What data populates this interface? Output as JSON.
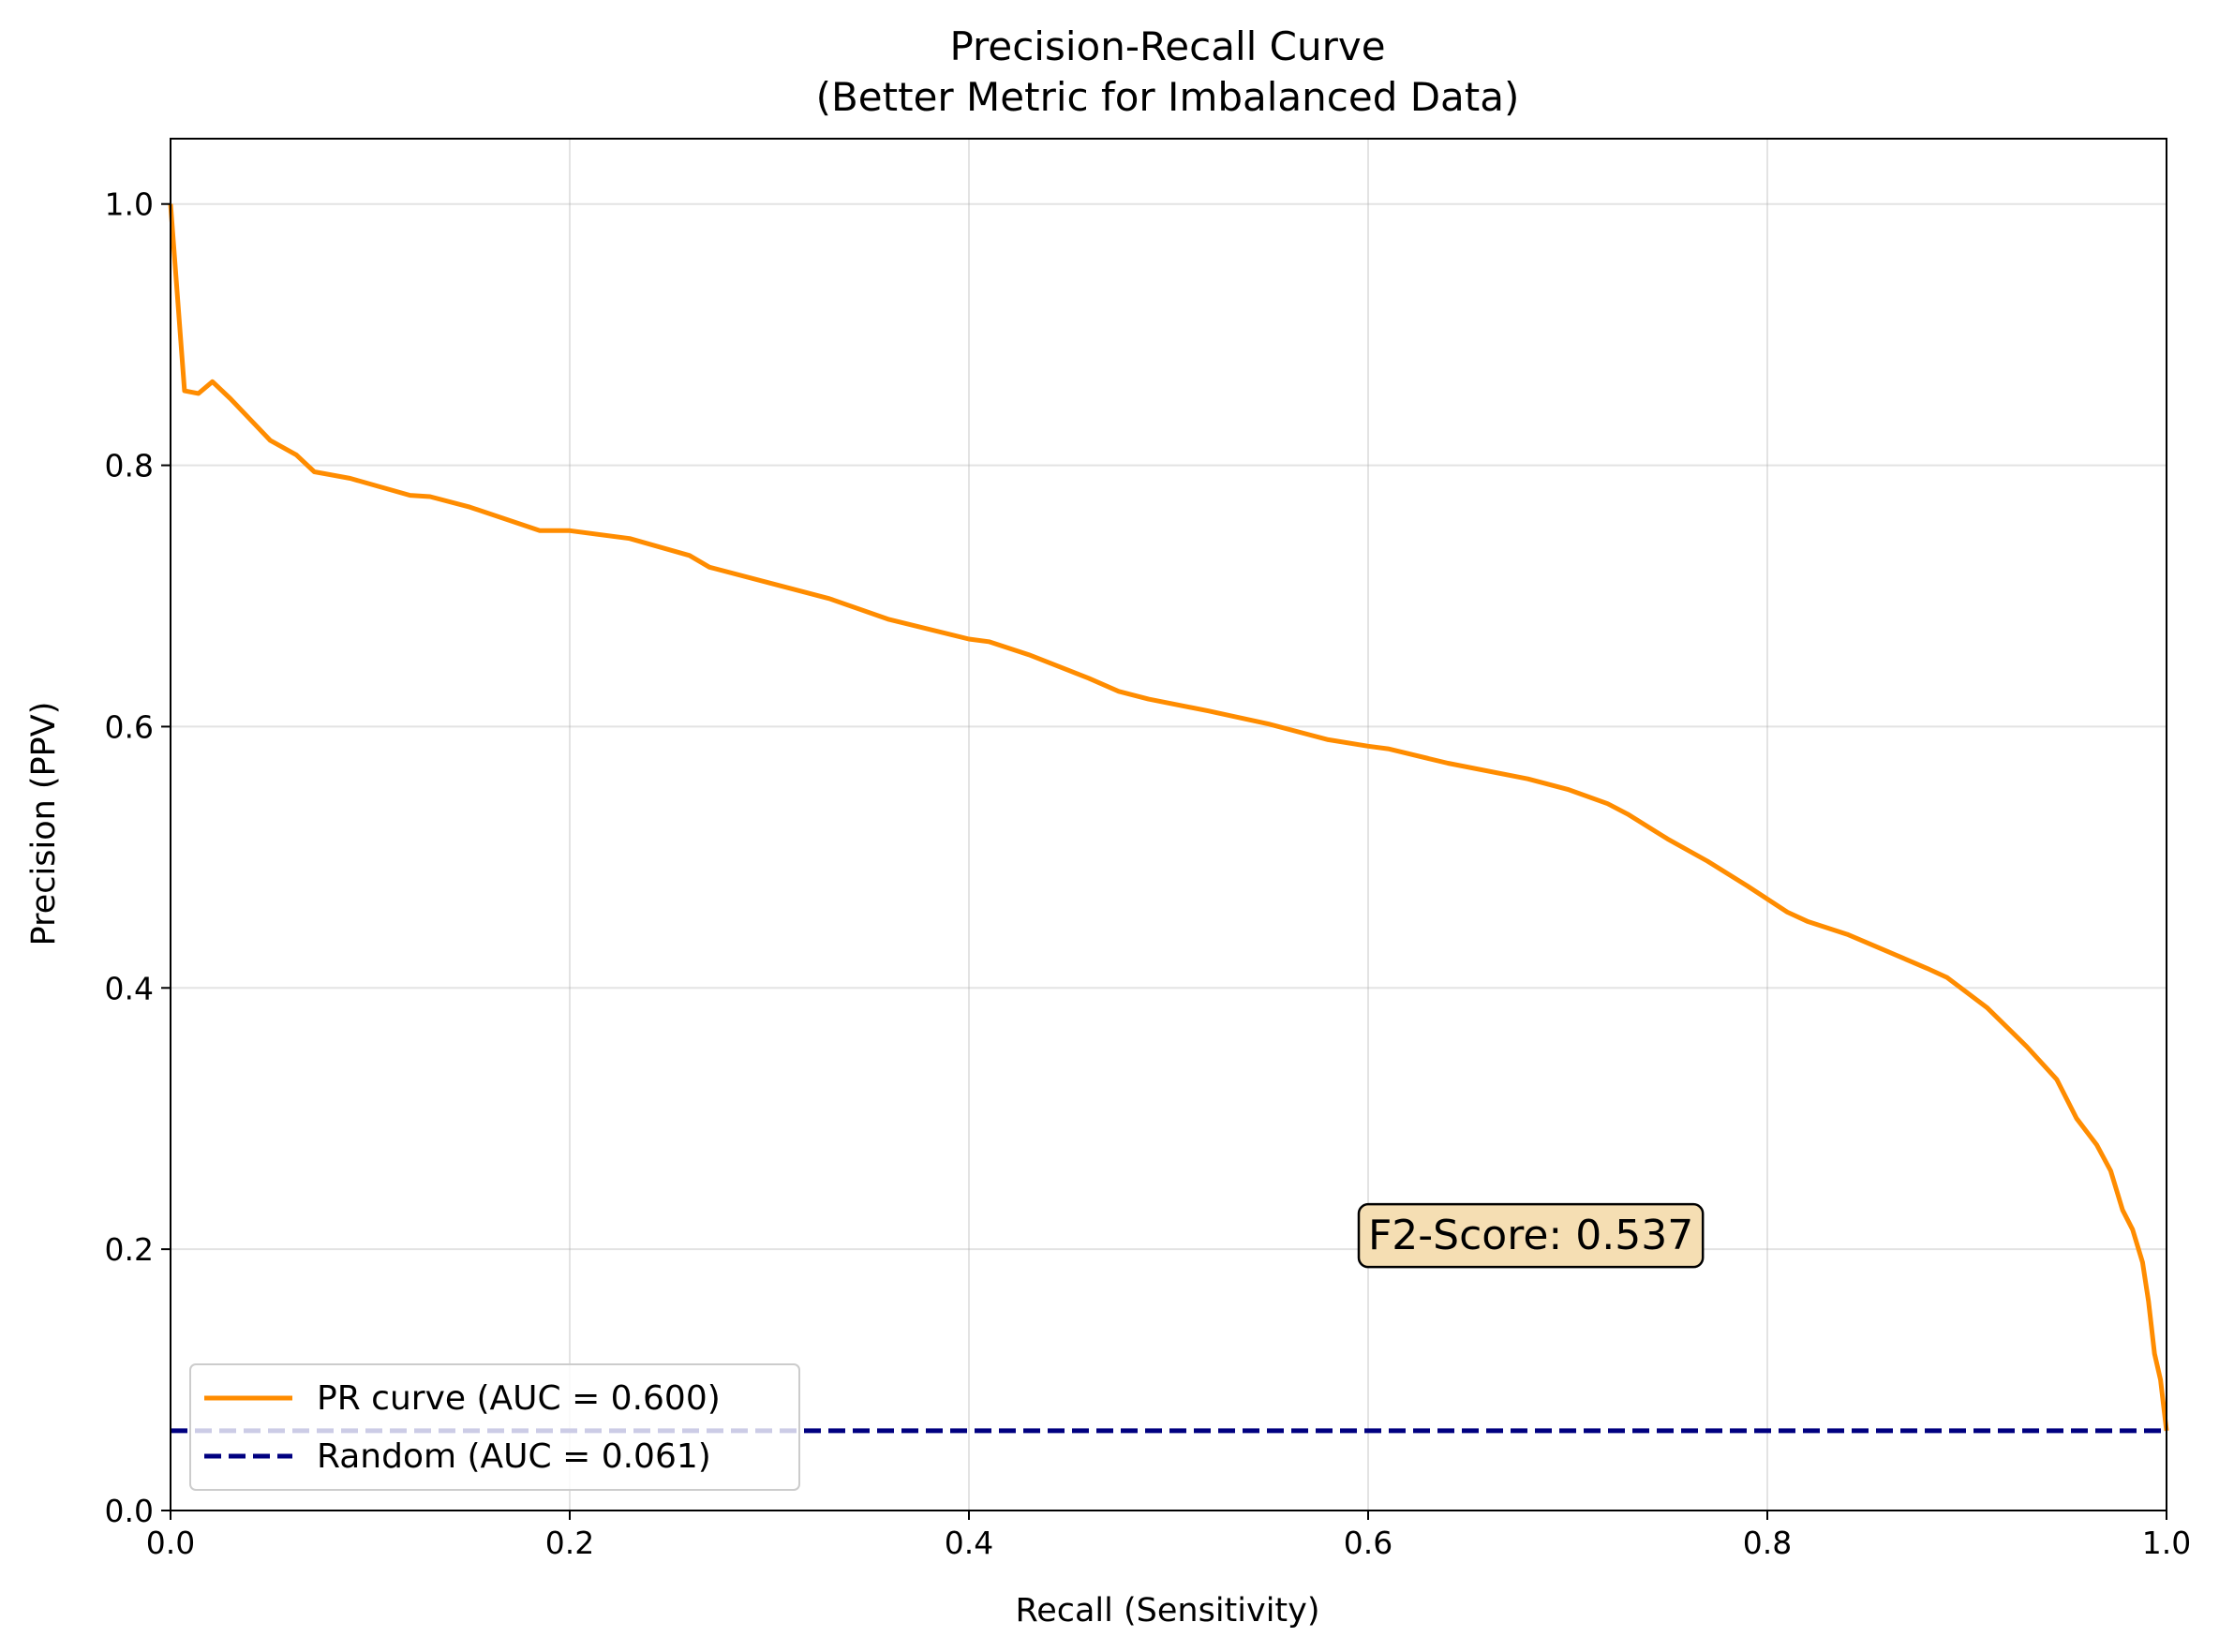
{
  "chart_data": {
    "type": "line",
    "title": "Precision-Recall Curve",
    "subtitle": "(Better Metric for Imbalanced Data)",
    "xlabel": "Recall (Sensitivity)",
    "ylabel": "Precision (PPV)",
    "xlim": [
      0.0,
      1.0
    ],
    "ylim": [
      0.0,
      1.05
    ],
    "xticks": [
      "0.0",
      "0.2",
      "0.4",
      "0.6",
      "0.8",
      "1.0"
    ],
    "yticks": [
      "0.0",
      "0.2",
      "0.4",
      "0.6",
      "0.8",
      "1.0"
    ],
    "grid": true,
    "legend_position": "lower-left",
    "series": [
      {
        "name": "PR curve (AUC = 0.600)",
        "color": "#ff8c00",
        "style": "solid",
        "x": [
          0.0,
          0.007,
          0.014,
          0.021,
          0.03,
          0.04,
          0.05,
          0.063,
          0.072,
          0.09,
          0.12,
          0.13,
          0.15,
          0.185,
          0.2,
          0.23,
          0.26,
          0.27,
          0.3,
          0.33,
          0.36,
          0.4,
          0.41,
          0.43,
          0.46,
          0.475,
          0.49,
          0.52,
          0.55,
          0.58,
          0.6,
          0.61,
          0.64,
          0.68,
          0.7,
          0.72,
          0.73,
          0.75,
          0.77,
          0.79,
          0.81,
          0.82,
          0.84,
          0.86,
          0.88,
          0.89,
          0.91,
          0.93,
          0.945,
          0.955,
          0.965,
          0.972,
          0.978,
          0.983,
          0.988,
          0.991,
          0.994,
          0.997,
          1.0
        ],
        "y": [
          1.0,
          0.857,
          0.855,
          0.864,
          0.851,
          0.835,
          0.819,
          0.808,
          0.795,
          0.79,
          0.777,
          0.776,
          0.768,
          0.75,
          0.75,
          0.744,
          0.731,
          0.722,
          0.71,
          0.698,
          0.682,
          0.667,
          0.665,
          0.655,
          0.637,
          0.627,
          0.621,
          0.612,
          0.602,
          0.59,
          0.585,
          0.583,
          0.572,
          0.56,
          0.552,
          0.541,
          0.533,
          0.514,
          0.497,
          0.478,
          0.458,
          0.451,
          0.441,
          0.428,
          0.415,
          0.408,
          0.385,
          0.355,
          0.33,
          0.3,
          0.28,
          0.26,
          0.23,
          0.215,
          0.19,
          0.16,
          0.12,
          0.1,
          0.061
        ]
      },
      {
        "name": "Random (AUC = 0.061)",
        "color": "#000080",
        "style": "dashed",
        "x": [
          0.0,
          1.0
        ],
        "y": [
          0.061,
          0.061
        ]
      }
    ],
    "annotation": {
      "text": "F2-Score: 0.537",
      "x": 0.6,
      "y": 0.2,
      "background": "#f5deb3"
    }
  }
}
